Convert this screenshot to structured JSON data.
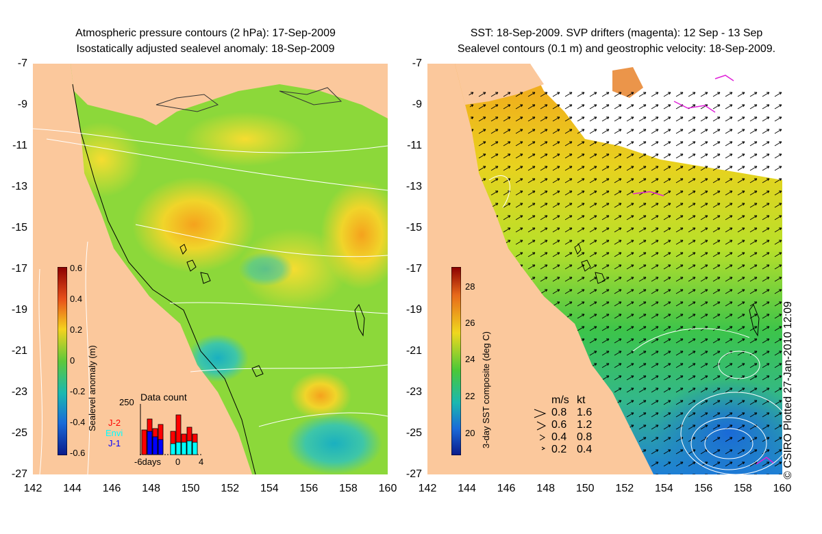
{
  "left_panel": {
    "title_line1": "Atmospheric pressure contours (2 hPa): 17-Sep-2009",
    "title_line2": "Isostatically adjusted sealevel anomaly: 18-Sep-2009",
    "colorbar_label": "Sealevel anomaly (m)",
    "colorbar_ticks": [
      "0.6",
      "0.4",
      "0.2",
      "0",
      "-0.2",
      "-0.4",
      "-0.6"
    ],
    "data_count": {
      "title": "Data count",
      "y_max_label": "250",
      "x_labels": [
        "-6days",
        "0",
        "4"
      ],
      "legend": [
        {
          "name": "J-2",
          "color": "#ff0000"
        },
        {
          "name": "Envi",
          "color": "#00ffff"
        },
        {
          "name": "J-1",
          "color": "#0000ff"
        }
      ]
    }
  },
  "right_panel": {
    "title_line1": "SST: 18-Sep-2009. SVP drifters (magenta): 12 Sep - 13 Sep",
    "title_line2": "Sealevel contours (0.1 m) and geostrophic velocity: 18-Sep-2009.",
    "colorbar_label": "3-day SST composite (deg C)",
    "colorbar_ticks": [
      "28",
      "26",
      "24",
      "22",
      "20"
    ],
    "velocity_legend": {
      "header_ms": "m/s",
      "header_kt": "kt",
      "rows": [
        {
          "ms": "0.8",
          "kt": "1.6"
        },
        {
          "ms": "0.6",
          "kt": "1.2"
        },
        {
          "ms": "0.4",
          "kt": "0.8"
        },
        {
          "ms": "0.2",
          "kt": "0.4"
        }
      ]
    }
  },
  "axes": {
    "lat_labels": [
      "-7",
      "-9",
      "-11",
      "-13",
      "-15",
      "-17",
      "-19",
      "-21",
      "-23",
      "-25",
      "-27"
    ],
    "lon_labels": [
      "142",
      "144",
      "146",
      "148",
      "150",
      "152",
      "154",
      "156",
      "158",
      "160"
    ]
  },
  "credit": "© CSIRO Plotted 27-Jan-2010 12:09",
  "colors": {
    "land": "#fbc89c",
    "ocean_green": "#7fd43a",
    "ocean_yellow": "#e8e02a",
    "sst_blue": "#2aa6d8"
  }
}
